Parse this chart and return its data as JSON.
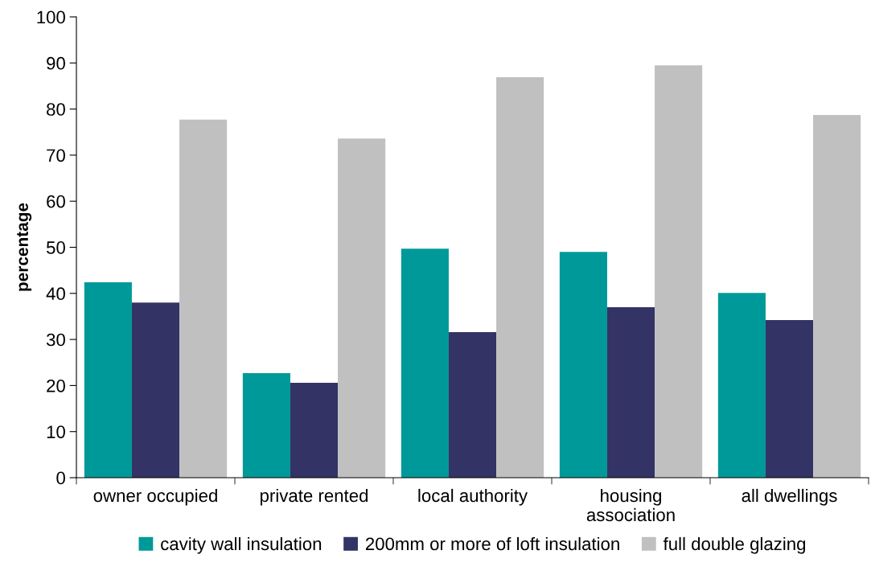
{
  "chart_data": {
    "type": "bar",
    "ylabel": "percentage",
    "categories": [
      "owner occupied",
      "private rented",
      "local authority",
      "housing\nassociation",
      "all dwellings"
    ],
    "series": [
      {
        "name": "cavity wall insulation",
        "color": "#009999",
        "values": [
          42.4,
          22.7,
          49.7,
          49.0,
          40.1
        ]
      },
      {
        "name": "200mm or more of loft insulation",
        "color": "#333366",
        "values": [
          38.0,
          20.6,
          31.6,
          37.0,
          34.2
        ]
      },
      {
        "name": "full double glazing",
        "color": "#c0c0c0",
        "values": [
          77.7,
          73.6,
          86.9,
          89.5,
          78.7
        ]
      }
    ],
    "ylim": [
      0,
      100
    ],
    "yticks": [
      0,
      10,
      20,
      30,
      40,
      50,
      60,
      70,
      80,
      90,
      100
    ],
    "grid": false,
    "legend": "bottom"
  }
}
